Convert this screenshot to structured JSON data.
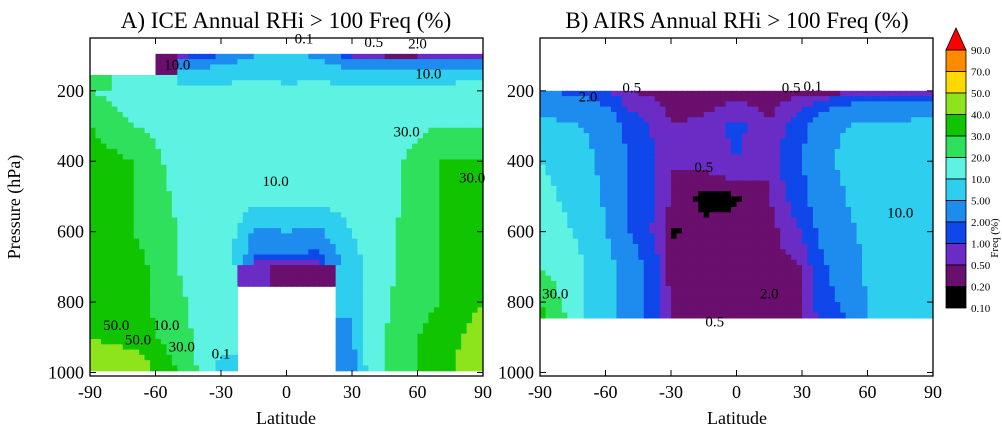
{
  "chart_data": [
    {
      "type": "heatmap",
      "title": "A) ICE Annual RHi > 100 Freq (%)",
      "xlabel": "Latitude",
      "ylabel": "Pressure (hPa)",
      "x_ticks": [
        -90,
        -60,
        -30,
        0,
        30,
        60,
        90
      ],
      "y_ticks": [
        200,
        400,
        600,
        800,
        1000
      ],
      "xlim": [
        -90,
        90
      ],
      "ylim": [
        1010,
        50
      ],
      "y_reversed": true,
      "contour_labels": [
        "0.1",
        "0.5",
        "2.0",
        "10.0",
        "10.0",
        "30.0",
        "10.0",
        "30.0",
        "50.0",
        "50.0",
        "10.0",
        "30.0",
        "0.1"
      ],
      "lat": [
        -90,
        -70,
        -50,
        -30,
        -15,
        0,
        15,
        30,
        50,
        70,
        90
      ],
      "p": [
        1000,
        900,
        800,
        700,
        600,
        500,
        400,
        300,
        200,
        100
      ],
      "values": [
        [
          50,
          50,
          30,
          8,
          null,
          null,
          null,
          3,
          25,
          35,
          50
        ],
        [
          40,
          35,
          25,
          10,
          null,
          null,
          null,
          4,
          25,
          35,
          45
        ],
        [
          40,
          35,
          22,
          12,
          null,
          null,
          null,
          5,
          22,
          30,
          40
        ],
        [
          35,
          35,
          20,
          14,
          0.5,
          0.3,
          0.3,
          6,
          20,
          30,
          35
        ],
        [
          35,
          30,
          20,
          15,
          4,
          5,
          4,
          10,
          20,
          30,
          32
        ],
        [
          35,
          30,
          18,
          15,
          12,
          12,
          12,
          13,
          18,
          30,
          30
        ],
        [
          35,
          30,
          15,
          15,
          14,
          14,
          14,
          14,
          18,
          30,
          30
        ],
        [
          30,
          20,
          15,
          15,
          15,
          14,
          14,
          15,
          15,
          20,
          20
        ],
        [
          20,
          14,
          12,
          12,
          12,
          11,
          12,
          12,
          12,
          12,
          14
        ],
        [
          null,
          null,
          0.3,
          2,
          5,
          6,
          4,
          0.5,
          0.1,
          0.3,
          0.5
        ]
      ]
    },
    {
      "type": "heatmap",
      "title": "B) AIRS Annual RHi > 100 Freq (%)",
      "xlabel": "Latitude",
      "ylabel": "",
      "x_ticks": [
        -90,
        -60,
        -30,
        0,
        30,
        60,
        90
      ],
      "y_ticks": [
        200,
        400,
        600,
        800,
        1000
      ],
      "xlim": [
        -90,
        90
      ],
      "ylim": [
        1010,
        50
      ],
      "y_reversed": true,
      "valid_pressure_range": [
        200,
        850
      ],
      "contour_labels": [
        "0.5",
        "2.0",
        "0.5",
        "0.1",
        "0.5",
        "0.5",
        "10.0",
        "2.0",
        "30.0"
      ],
      "lat": [
        -90,
        -70,
        -50,
        -30,
        -15,
        0,
        15,
        30,
        50,
        70,
        90
      ],
      "p": [
        850,
        700,
        600,
        500,
        400,
        300,
        200
      ],
      "values": [
        [
          35,
          10,
          3,
          0.4,
          0.3,
          0.3,
          0.3,
          0.5,
          2,
          8,
          10
        ],
        [
          20,
          10,
          3,
          0.3,
          0.3,
          0.3,
          0.3,
          0.5,
          3,
          8,
          10
        ],
        [
          15,
          8,
          2,
          0.15,
          0.3,
          0.3,
          0.3,
          1,
          4,
          8,
          10
        ],
        [
          12,
          7,
          2,
          0.5,
          0.08,
          0.15,
          0.5,
          1.5,
          5,
          10,
          10
        ],
        [
          10,
          6,
          2,
          0.5,
          0.6,
          1,
          0.5,
          2,
          6,
          8,
          8
        ],
        [
          6,
          5,
          1.5,
          0.5,
          0.6,
          1.2,
          0.5,
          1.5,
          5,
          6,
          6
        ],
        [
          2,
          1.5,
          0.5,
          0.3,
          0.2,
          0.2,
          0.3,
          0.3,
          0.15,
          0.1,
          0.5
        ]
      ]
    }
  ],
  "colorbar": {
    "label": "Freq (%)",
    "levels": [
      "0.10",
      "0.20",
      "0.50",
      "1.00",
      "2.00",
      "5.00",
      "10.0",
      "20.0",
      "30.0",
      "40.0",
      "50.0",
      "70.0",
      "90.0"
    ],
    "colors": [
      "#000000",
      "#6a0f6d",
      "#6a2cc4",
      "#0f47ea",
      "#1d8cee",
      "#2ecfee",
      "#5ef2e2",
      "#2fe05c",
      "#10c400",
      "#8ee41c",
      "#ffd800",
      "#ff8a00",
      "#ff0000"
    ]
  }
}
